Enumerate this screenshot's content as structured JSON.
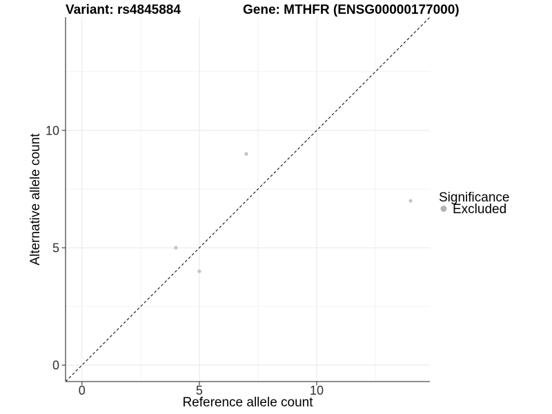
{
  "chart_data": {
    "type": "scatter",
    "title_left": "Variant: rs4845884",
    "title_right": "Gene: MTHFR (ENSG00000177000)",
    "xlabel": "Reference allele count",
    "ylabel": "Alternative allele count",
    "xlim": [
      -0.7,
      14.82
    ],
    "ylim": [
      -0.7,
      14.82
    ],
    "x_ticks": [
      0,
      5,
      10
    ],
    "y_ticks": [
      0,
      5,
      10
    ],
    "x_minor_ticks": [
      2.5,
      7.5,
      12.5
    ],
    "y_minor_ticks": [
      2.5,
      7.5,
      12.5
    ],
    "grid": {
      "major_color": "#e6e6e6",
      "minor_color": "#f2f2f2",
      "background": "#ffffff"
    },
    "axis_color": "#474747",
    "series": [
      {
        "name": "Excluded",
        "point_color": "#c4c4c4",
        "points": [
          {
            "x": 4,
            "y": 5
          },
          {
            "x": 5,
            "y": 4
          },
          {
            "x": 7,
            "y": 9
          },
          {
            "x": 14,
            "y": 7
          }
        ]
      }
    ],
    "reference_line": {
      "kind": "identity",
      "style": "dashed",
      "color": "#111111",
      "from": -0.7,
      "to": 14.82
    },
    "legend": {
      "position": "right",
      "title": "Significance",
      "items": [
        {
          "label": "Excluded",
          "key_color": "#b2b2b2"
        }
      ]
    }
  }
}
